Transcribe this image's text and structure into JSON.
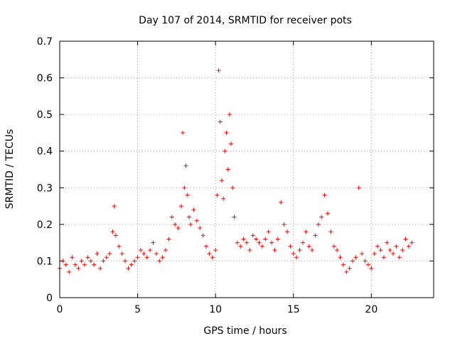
{
  "chart_data": {
    "type": "scatter",
    "title": "Day 107 of 2014, SRMTID for receiver pots",
    "xlabel": "GPS time / hours",
    "ylabel": "SRMTID / TECUs",
    "xlim": [
      0,
      24
    ],
    "ylim": [
      0,
      0.7
    ],
    "xticks": [
      0,
      5,
      10,
      15,
      20
    ],
    "xtick_labels": [
      "0",
      "5",
      "10",
      "15",
      "20"
    ],
    "yticks": [
      0,
      0.1,
      0.2,
      0.3,
      0.4,
      0.5,
      0.6,
      0.7
    ],
    "ytick_labels": [
      "0",
      "0.1",
      "0.2",
      "0.3",
      "0.4",
      "0.5",
      "0.6",
      "0.7"
    ],
    "grid": true,
    "marker": "+",
    "marker_color": "#ff0000",
    "series": [
      {
        "name": "SRMTID",
        "x": [
          0.0,
          0.2,
          0.4,
          0.6,
          0.8,
          1.0,
          1.2,
          1.4,
          1.6,
          1.8,
          2.0,
          2.2,
          2.4,
          2.6,
          2.8,
          3.0,
          3.2,
          3.4,
          3.5,
          3.6,
          3.8,
          4.0,
          4.2,
          4.4,
          4.6,
          4.8,
          5.0,
          5.2,
          5.4,
          5.6,
          5.8,
          6.0,
          6.2,
          6.4,
          6.6,
          6.8,
          7.0,
          7.2,
          7.4,
          7.6,
          7.8,
          7.9,
          8.0,
          8.1,
          8.2,
          8.3,
          8.4,
          8.6,
          8.8,
          9.0,
          9.2,
          9.4,
          9.6,
          9.8,
          10.0,
          10.1,
          10.2,
          10.3,
          10.4,
          10.5,
          10.6,
          10.7,
          10.8,
          10.9,
          11.0,
          11.1,
          11.2,
          11.4,
          11.6,
          11.8,
          12.0,
          12.2,
          12.4,
          12.6,
          12.8,
          13.0,
          13.2,
          13.4,
          13.6,
          13.8,
          14.0,
          14.2,
          14.4,
          14.6,
          14.8,
          15.0,
          15.2,
          15.4,
          15.6,
          15.8,
          16.0,
          16.2,
          16.4,
          16.6,
          16.8,
          17.0,
          17.2,
          17.4,
          17.6,
          17.8,
          18.0,
          18.2,
          18.4,
          18.6,
          18.8,
          19.0,
          19.2,
          19.4,
          19.6,
          19.8,
          20.0,
          20.2,
          20.4,
          20.6,
          20.8,
          21.0,
          21.2,
          21.4,
          21.6,
          21.8,
          22.0,
          22.2,
          22.4,
          22.6
        ],
        "y": [
          0.08,
          0.1,
          0.09,
          0.07,
          0.11,
          0.09,
          0.08,
          0.1,
          0.09,
          0.11,
          0.1,
          0.09,
          0.12,
          0.08,
          0.1,
          0.11,
          0.12,
          0.18,
          0.25,
          0.17,
          0.14,
          0.12,
          0.1,
          0.08,
          0.09,
          0.1,
          0.11,
          0.13,
          0.12,
          0.11,
          0.13,
          0.15,
          0.12,
          0.1,
          0.11,
          0.13,
          0.16,
          0.22,
          0.2,
          0.19,
          0.25,
          0.45,
          0.3,
          0.36,
          0.28,
          0.22,
          0.2,
          0.24,
          0.21,
          0.19,
          0.17,
          0.14,
          0.12,
          0.11,
          0.13,
          0.28,
          0.62,
          0.48,
          0.32,
          0.27,
          0.4,
          0.45,
          0.35,
          0.5,
          0.42,
          0.3,
          0.22,
          0.15,
          0.14,
          0.16,
          0.15,
          0.13,
          0.17,
          0.16,
          0.15,
          0.14,
          0.16,
          0.18,
          0.15,
          0.13,
          0.16,
          0.26,
          0.2,
          0.18,
          0.14,
          0.12,
          0.11,
          0.13,
          0.15,
          0.18,
          0.14,
          0.13,
          0.17,
          0.2,
          0.22,
          0.28,
          0.23,
          0.18,
          0.14,
          0.13,
          0.11,
          0.09,
          0.07,
          0.08,
          0.1,
          0.11,
          0.3,
          0.12,
          0.1,
          0.09,
          0.08,
          0.12,
          0.14,
          0.13,
          0.11,
          0.15,
          0.13,
          0.12,
          0.14,
          0.11,
          0.13,
          0.16,
          0.14,
          0.15
        ]
      }
    ]
  }
}
